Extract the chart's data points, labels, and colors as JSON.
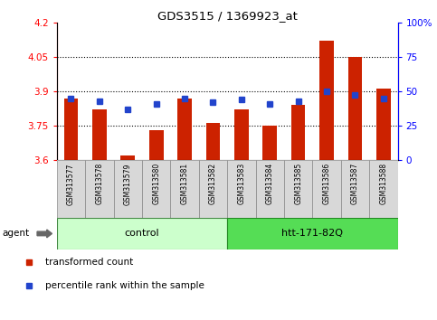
{
  "title": "GDS3515 / 1369923_at",
  "samples": [
    "GSM313577",
    "GSM313578",
    "GSM313579",
    "GSM313580",
    "GSM313581",
    "GSM313582",
    "GSM313583",
    "GSM313584",
    "GSM313585",
    "GSM313586",
    "GSM313587",
    "GSM313588"
  ],
  "red_values": [
    3.87,
    3.82,
    3.62,
    3.73,
    3.87,
    3.76,
    3.82,
    3.75,
    3.84,
    4.12,
    4.05,
    3.91
  ],
  "blue_values": [
    45,
    43,
    37,
    41,
    45,
    42,
    44,
    41,
    43,
    50,
    47,
    45
  ],
  "ylim_left": [
    3.6,
    4.2
  ],
  "ylim_right": [
    0,
    100
  ],
  "yticks_left": [
    3.6,
    3.75,
    3.9,
    4.05,
    4.2
  ],
  "yticks_right": [
    0,
    25,
    50,
    75,
    100
  ],
  "ytick_labels_left": [
    "3.6",
    "3.75",
    "3.9",
    "4.05",
    "4.2"
  ],
  "ytick_labels_right": [
    "0",
    "25",
    "50",
    "75",
    "100%"
  ],
  "hlines": [
    3.75,
    3.9,
    4.05
  ],
  "bar_color": "#cc2200",
  "dot_color": "#2244cc",
  "control_label": "control",
  "htt_label": "htt-171-82Q",
  "agent_label": "agent",
  "legend_red": "transformed count",
  "legend_blue": "percentile rank within the sample",
  "bar_width": 0.5,
  "ybase": 3.6,
  "n_control": 6,
  "n_total": 12
}
